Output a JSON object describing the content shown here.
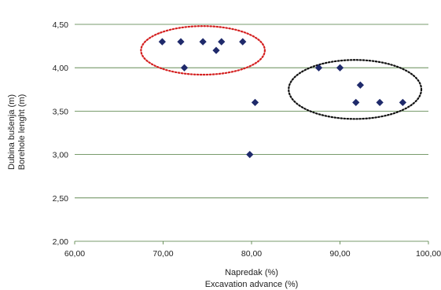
{
  "chart_data": {
    "type": "scatter",
    "xlabel": [
      "Napredak (%)",
      "Excavation advance (%)"
    ],
    "ylabel": [
      "Dubina bušenja (m)",
      "Borehole lenght (m)"
    ],
    "xlim": [
      60,
      100
    ],
    "ylim": [
      2,
      4.5
    ],
    "x_ticks": [
      "60,00",
      "70,00",
      "80,00",
      "90,00",
      "100,00"
    ],
    "y_ticks": [
      "2,00",
      "2,50",
      "3,00",
      "3,50",
      "4,00",
      "4,50"
    ],
    "grid": "horizontal",
    "marker": "diamond",
    "marker_color": "#1f2a6b",
    "grid_color": "#4d7a3c",
    "points": [
      {
        "x": 69.9,
        "y": 4.3
      },
      {
        "x": 72.0,
        "y": 4.3
      },
      {
        "x": 74.5,
        "y": 4.3
      },
      {
        "x": 76.6,
        "y": 4.3
      },
      {
        "x": 79.0,
        "y": 4.3
      },
      {
        "x": 76.0,
        "y": 4.2
      },
      {
        "x": 72.4,
        "y": 4.0
      },
      {
        "x": 80.4,
        "y": 3.6
      },
      {
        "x": 79.8,
        "y": 3.0
      },
      {
        "x": 87.6,
        "y": 4.0
      },
      {
        "x": 90.0,
        "y": 4.0
      },
      {
        "x": 92.3,
        "y": 3.8
      },
      {
        "x": 91.8,
        "y": 3.6
      },
      {
        "x": 94.5,
        "y": 3.6
      },
      {
        "x": 97.1,
        "y": 3.6
      }
    ],
    "annotations": [
      {
        "shape": "ellipse",
        "style": "dotted",
        "color": "#d42020",
        "center": [
          74.5,
          4.2
        ],
        "rx": 7.0,
        "ry": 0.28
      },
      {
        "shape": "ellipse",
        "style": "dotted",
        "color": "#111111",
        "center": [
          91.7,
          3.75
        ],
        "rx": 7.5,
        "ry": 0.34
      }
    ]
  }
}
